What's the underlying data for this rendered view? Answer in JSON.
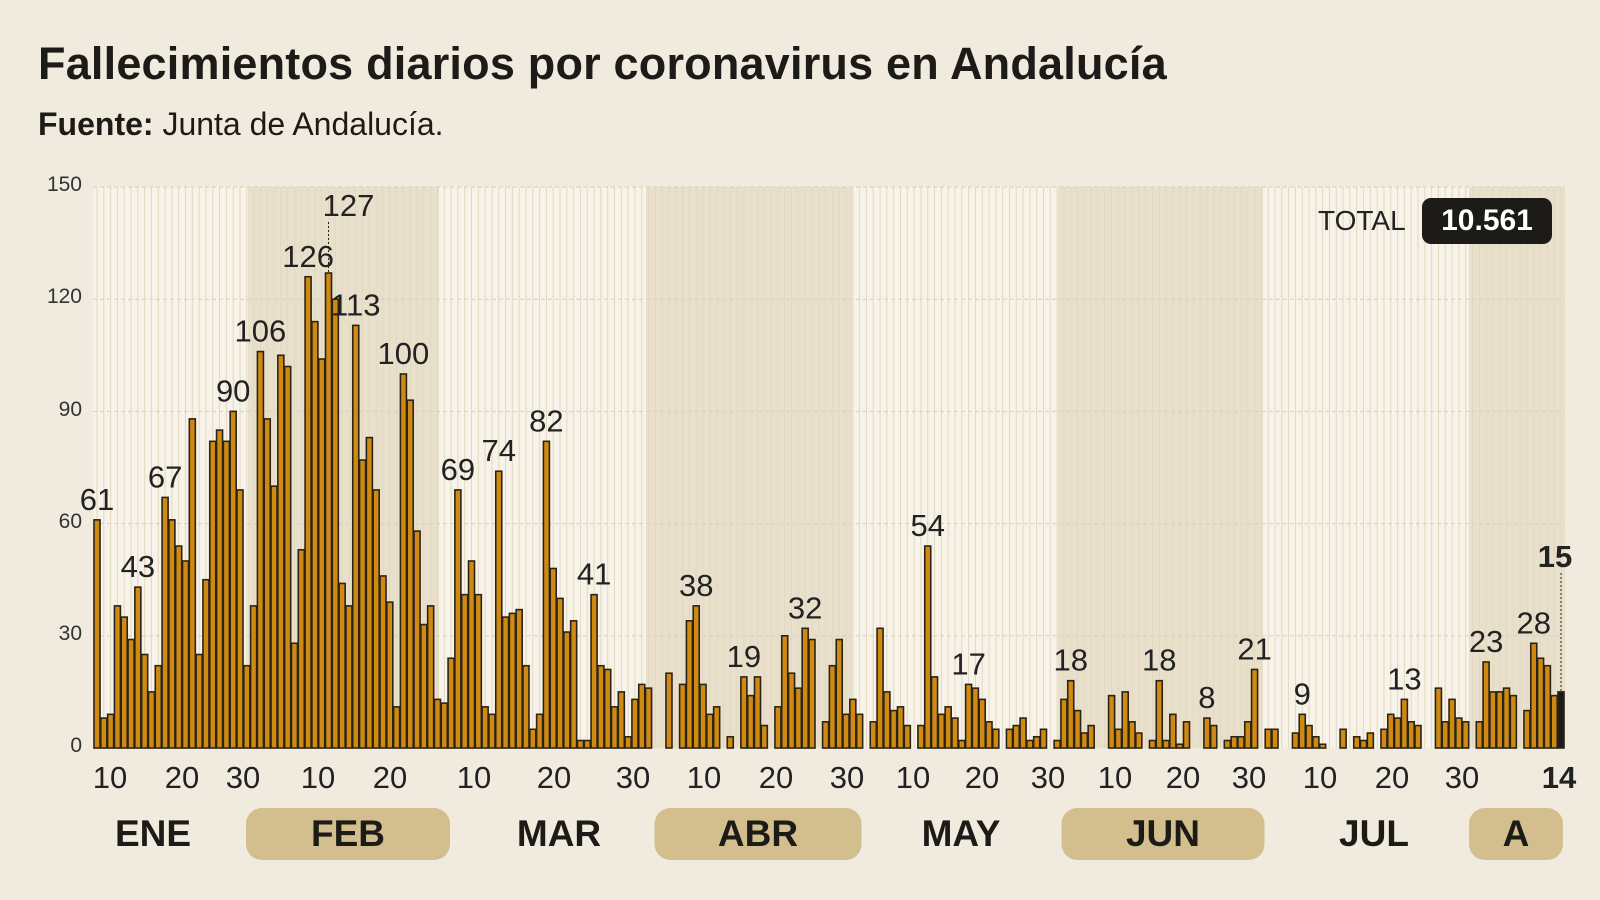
{
  "title": "Fallecimientos diarios por coronavirus en Andalucía",
  "source_label": "Fuente:",
  "source": "Junta de Andalucía.",
  "total_label": "TOTAL",
  "total_value": "10.561",
  "colors": {
    "background": "#f1ebdf",
    "bar": "#d08a12",
    "bar_stroke": "#2a2418",
    "highlight_bar": "#1d1b17",
    "band": "#e9e0cc",
    "pill": "#d2bf8d"
  },
  "chart_data": {
    "type": "bar",
    "title": "Fallecimientos diarios por coronavirus en Andalucía",
    "ylim": [
      0,
      150
    ],
    "y_ticks": [
      "0",
      "30",
      "60",
      "90",
      "120",
      "150"
    ],
    "grid": true,
    "x_tick_labels": [
      "10",
      "20",
      "30",
      "10",
      "20",
      "10",
      "20",
      "30",
      "10",
      "20",
      "30",
      "10",
      "20",
      "30",
      "10",
      "20",
      "30",
      "10",
      "20",
      "30",
      "14"
    ],
    "months": [
      {
        "label": "ENE",
        "pill": false
      },
      {
        "label": "FEB",
        "pill": true
      },
      {
        "label": "MAR",
        "pill": false
      },
      {
        "label": "ABR",
        "pill": true
      },
      {
        "label": "MAY",
        "pill": false
      },
      {
        "label": "JUN",
        "pill": true
      },
      {
        "label": "JUL",
        "pill": false
      },
      {
        "label": "A",
        "pill": true
      }
    ],
    "values": [
      61,
      8,
      9,
      38,
      35,
      29,
      43,
      25,
      15,
      22,
      67,
      61,
      54,
      50,
      88,
      25,
      45,
      82,
      85,
      82,
      90,
      69,
      22,
      38,
      106,
      88,
      70,
      105,
      102,
      28,
      53,
      126,
      114,
      104,
      127,
      120,
      44,
      38,
      113,
      77,
      83,
      69,
      46,
      39,
      11,
      100,
      93,
      58,
      33,
      38,
      13,
      12,
      24,
      69,
      41,
      50,
      41,
      11,
      9,
      74,
      35,
      36,
      37,
      22,
      5,
      9,
      82,
      48,
      40,
      31,
      34,
      2,
      2,
      41,
      22,
      21,
      11,
      15,
      3,
      13,
      17,
      16,
      0,
      0,
      20,
      0,
      17,
      34,
      38,
      17,
      9,
      11,
      0,
      3,
      0,
      19,
      14,
      19,
      6,
      0,
      11,
      30,
      20,
      16,
      32,
      29,
      0,
      7,
      22,
      29,
      9,
      13,
      9,
      0,
      7,
      32,
      15,
      10,
      11,
      6,
      0,
      6,
      54,
      19,
      9,
      11,
      8,
      2,
      17,
      16,
      13,
      7,
      5,
      0,
      5,
      6,
      8,
      2,
      3,
      5,
      0,
      2,
      13,
      18,
      10,
      4,
      6,
      0,
      0,
      14,
      5,
      15,
      7,
      4,
      0,
      2,
      18,
      2,
      9,
      1,
      7,
      0,
      0,
      8,
      6,
      0,
      2,
      3,
      3,
      7,
      21,
      0,
      5,
      5,
      0,
      0,
      4,
      9,
      6,
      3,
      1,
      0,
      0,
      5,
      0,
      3,
      2,
      4,
      0,
      5,
      9,
      8,
      13,
      7,
      6,
      0,
      0,
      16,
      7,
      13,
      8,
      7,
      0,
      7,
      23,
      15,
      15,
      16,
      14,
      0,
      10,
      28,
      24,
      22,
      14,
      15
    ],
    "annotations": [
      61,
      43,
      67,
      90,
      106,
      126,
      127,
      113,
      100,
      69,
      74,
      82,
      41,
      38,
      19,
      32,
      54,
      17,
      18,
      18,
      8,
      21,
      9,
      13,
      23,
      28,
      15
    ],
    "highlight_last": true
  }
}
